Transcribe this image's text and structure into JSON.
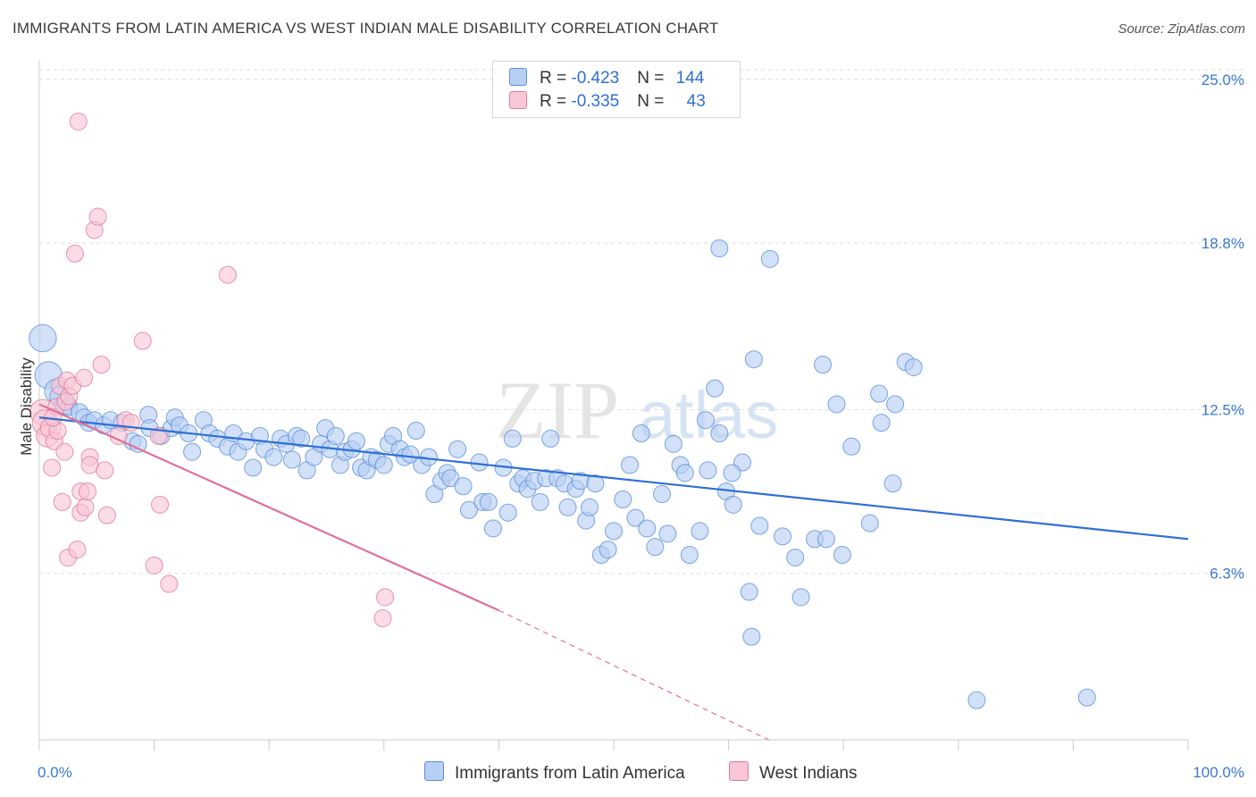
{
  "title": "IMMIGRANTS FROM LATIN AMERICA VS WEST INDIAN MALE DISABILITY CORRELATION CHART",
  "source": "Source: ZipAtlas.com",
  "watermark": {
    "zip": "ZIP",
    "atlas": "atlas"
  },
  "stats": [
    {
      "r_label": "R = ",
      "r_value": "-0.423",
      "n_label": "N = ",
      "n_value": "144",
      "color": "#5b8fd9",
      "fill": "#b7cff3"
    },
    {
      "r_label": "R = ",
      "r_value": "-0.335",
      "n_label": "N = ",
      "n_value": "43",
      "color": "#e07a9e",
      "fill": "#f8c6d5"
    }
  ],
  "legend": [
    {
      "label": "Immigrants from Latin America",
      "fill": "#b7cff3",
      "stroke": "#5b8fd9"
    },
    {
      "label": "West Indians",
      "fill": "#f8c6d5",
      "stroke": "#e07a9e"
    }
  ],
  "chart_data": {
    "type": "scatter",
    "title": "IMMIGRANTS FROM LATIN AMERICA VS WEST INDIAN MALE DISABILITY CORRELATION CHART",
    "xlabel": "",
    "ylabel": "Male Disability",
    "xlim": [
      0,
      100
    ],
    "ylim": [
      0,
      25.5
    ],
    "x_tick_labels": [
      "0.0%",
      "100.0%"
    ],
    "y_ticks": [
      6.3,
      12.5,
      18.8,
      25.0
    ],
    "y_tick_labels": [
      "6.3%",
      "12.5%",
      "18.8%",
      "25.0%"
    ],
    "grid": true,
    "series": [
      {
        "name": "Immigrants from Latin America",
        "color": "#5b8fd9",
        "fill": "#b7cff3",
        "trend": {
          "x": [
            0,
            100
          ],
          "y": [
            12.2,
            7.6
          ],
          "dashed_from": null
        },
        "points": [
          [
            0.3,
            15.2,
            1.6
          ],
          [
            0.8,
            13.8,
            1.6
          ],
          [
            1.5,
            13.2,
            1.4
          ],
          [
            1.8,
            13.0,
            1.2
          ],
          [
            2.3,
            12.7,
            1.2
          ],
          [
            2.6,
            12.6,
            1.0
          ],
          [
            3.5,
            12.4,
            1.0
          ],
          [
            3.9,
            12.2,
            1.0
          ],
          [
            4.3,
            12.0,
            1.0
          ],
          [
            4.8,
            12.1,
            1.0
          ],
          [
            5.6,
            11.9,
            1.0
          ],
          [
            6.2,
            12.1,
            1.0
          ],
          [
            7.2,
            12.0,
            1.0
          ],
          [
            8.1,
            11.3,
            1.0
          ],
          [
            8.6,
            11.2,
            1.0
          ],
          [
            9.5,
            12.3,
            1.0
          ],
          [
            9.6,
            11.8,
            1.0
          ],
          [
            10.6,
            11.5,
            1.0
          ],
          [
            11.5,
            11.8,
            1.0
          ],
          [
            11.8,
            12.2,
            1.0
          ],
          [
            12.2,
            11.9,
            1.0
          ],
          [
            13.0,
            11.6,
            1.0
          ],
          [
            13.3,
            10.9,
            1.0
          ],
          [
            14.3,
            12.1,
            1.0
          ],
          [
            14.8,
            11.6,
            1.0
          ],
          [
            15.5,
            11.4,
            1.0
          ],
          [
            16.4,
            11.1,
            1.0
          ],
          [
            16.9,
            11.6,
            1.0
          ],
          [
            17.3,
            10.9,
            1.0
          ],
          [
            18.0,
            11.3,
            1.0
          ],
          [
            18.6,
            10.3,
            1.0
          ],
          [
            19.2,
            11.5,
            1.0
          ],
          [
            19.6,
            11.0,
            1.0
          ],
          [
            20.4,
            10.7,
            1.0
          ],
          [
            21.0,
            11.4,
            1.0
          ],
          [
            21.5,
            11.2,
            1.0
          ],
          [
            22.0,
            10.6,
            1.0
          ],
          [
            22.4,
            11.5,
            1.0
          ],
          [
            22.8,
            11.4,
            1.0
          ],
          [
            23.3,
            10.2,
            1.0
          ],
          [
            23.9,
            10.7,
            1.0
          ],
          [
            24.5,
            11.2,
            1.0
          ],
          [
            24.9,
            11.8,
            1.0
          ],
          [
            25.3,
            11.0,
            1.0
          ],
          [
            25.8,
            11.5,
            1.0
          ],
          [
            26.2,
            10.4,
            1.0
          ],
          [
            26.6,
            10.9,
            1.0
          ],
          [
            27.2,
            11.0,
            1.0
          ],
          [
            27.6,
            11.3,
            1.0
          ],
          [
            28.0,
            10.3,
            1.0
          ],
          [
            28.5,
            10.2,
            1.0
          ],
          [
            28.9,
            10.7,
            1.0
          ],
          [
            29.4,
            10.6,
            1.0
          ],
          [
            30.0,
            10.4,
            1.0
          ],
          [
            30.4,
            11.2,
            1.0
          ],
          [
            30.8,
            11.5,
            1.0
          ],
          [
            31.4,
            11.0,
            1.0
          ],
          [
            31.8,
            10.7,
            1.0
          ],
          [
            32.3,
            10.8,
            1.0
          ],
          [
            32.8,
            11.7,
            1.0
          ],
          [
            33.3,
            10.4,
            1.0
          ],
          [
            33.9,
            10.7,
            1.0
          ],
          [
            34.4,
            9.3,
            1.0
          ],
          [
            35.0,
            9.8,
            1.0
          ],
          [
            35.5,
            10.1,
            1.0
          ],
          [
            35.8,
            9.9,
            1.0
          ],
          [
            36.4,
            11.0,
            1.0
          ],
          [
            36.9,
            9.6,
            1.0
          ],
          [
            37.4,
            8.7,
            1.0
          ],
          [
            38.3,
            10.5,
            1.0
          ],
          [
            38.6,
            9.0,
            1.0
          ],
          [
            39.1,
            9.0,
            1.0
          ],
          [
            39.5,
            8.0,
            1.0
          ],
          [
            40.4,
            10.3,
            1.0
          ],
          [
            40.8,
            8.6,
            1.0
          ],
          [
            41.2,
            11.4,
            1.0
          ],
          [
            41.7,
            9.7,
            1.0
          ],
          [
            42.1,
            9.9,
            1.0
          ],
          [
            42.5,
            9.5,
            1.0
          ],
          [
            43.1,
            9.8,
            1.0
          ],
          [
            43.6,
            9.0,
            1.0
          ],
          [
            44.1,
            9.9,
            1.0
          ],
          [
            44.5,
            11.4,
            1.0
          ],
          [
            45.1,
            9.9,
            1.0
          ],
          [
            45.7,
            9.7,
            1.0
          ],
          [
            46.0,
            8.8,
            1.0
          ],
          [
            46.7,
            9.5,
            1.0
          ],
          [
            47.1,
            9.8,
            1.0
          ],
          [
            47.6,
            8.3,
            1.0
          ],
          [
            47.9,
            8.8,
            1.0
          ],
          [
            48.4,
            9.7,
            1.0
          ],
          [
            48.9,
            7.0,
            1.0
          ],
          [
            49.5,
            7.2,
            1.0
          ],
          [
            50.0,
            7.9,
            1.0
          ],
          [
            50.8,
            9.1,
            1.0
          ],
          [
            51.4,
            10.4,
            1.0
          ],
          [
            51.9,
            8.4,
            1.0
          ],
          [
            52.4,
            11.6,
            1.0
          ],
          [
            52.9,
            8.0,
            1.0
          ],
          [
            53.6,
            7.3,
            1.0
          ],
          [
            54.2,
            9.3,
            1.0
          ],
          [
            54.7,
            7.8,
            1.0
          ],
          [
            55.2,
            11.2,
            1.0
          ],
          [
            55.8,
            10.4,
            1.0
          ],
          [
            56.2,
            10.1,
            1.0
          ],
          [
            56.6,
            7.0,
            1.0
          ],
          [
            57.5,
            7.9,
            1.0
          ],
          [
            58.0,
            12.1,
            1.0
          ],
          [
            58.2,
            10.2,
            1.0
          ],
          [
            59.2,
            11.6,
            1.0
          ],
          [
            59.2,
            18.6,
            1.0
          ],
          [
            59.8,
            9.4,
            1.0
          ],
          [
            60.4,
            8.9,
            1.0
          ],
          [
            61.2,
            10.5,
            1.0
          ],
          [
            61.8,
            5.6,
            1.0
          ],
          [
            62.2,
            14.4,
            1.0
          ],
          [
            62.7,
            8.1,
            1.0
          ],
          [
            63.6,
            18.2,
            1.0
          ],
          [
            64.7,
            7.7,
            1.0
          ],
          [
            65.8,
            6.9,
            1.0
          ],
          [
            66.3,
            5.4,
            1.0
          ],
          [
            67.5,
            7.6,
            1.0
          ],
          [
            68.2,
            14.2,
            1.0
          ],
          [
            68.5,
            7.6,
            1.0
          ],
          [
            69.4,
            12.7,
            1.0
          ],
          [
            69.9,
            7.0,
            1.0
          ],
          [
            70.7,
            11.1,
            1.0
          ],
          [
            72.3,
            8.2,
            1.0
          ],
          [
            73.1,
            13.1,
            1.0
          ],
          [
            73.3,
            12.0,
            1.0
          ],
          [
            74.3,
            9.7,
            1.0
          ],
          [
            74.5,
            12.7,
            1.0
          ],
          [
            75.4,
            14.3,
            1.0
          ],
          [
            76.1,
            14.1,
            1.0
          ],
          [
            62.0,
            3.9,
            1.0
          ],
          [
            60.3,
            10.1,
            1.0
          ],
          [
            81.6,
            1.5,
            1.0
          ],
          [
            91.2,
            1.6,
            1.0
          ],
          [
            58.8,
            13.3,
            1.0
          ]
        ]
      },
      {
        "name": "West Indians",
        "color": "#e07a9e",
        "fill": "#f8c6d5",
        "trend": {
          "x": [
            0,
            40
          ],
          "y": [
            12.7,
            4.9
          ],
          "dashed_to": [
            63.5,
            0
          ]
        },
        "points": [
          [
            0.3,
            12.4,
            1.5
          ],
          [
            0.5,
            12.0,
            1.5
          ],
          [
            0.7,
            11.5,
            1.3
          ],
          [
            1.0,
            11.8,
            1.2
          ],
          [
            1.1,
            10.3,
            1.0
          ],
          [
            1.3,
            11.3,
            1.0
          ],
          [
            1.5,
            12.6,
            1.0
          ],
          [
            1.6,
            11.7,
            1.0
          ],
          [
            1.8,
            13.4,
            1.0
          ],
          [
            2.0,
            9.0,
            1.0
          ],
          [
            2.2,
            10.9,
            1.0
          ],
          [
            2.3,
            12.8,
            1.0
          ],
          [
            2.4,
            13.6,
            1.0
          ],
          [
            2.5,
            6.9,
            1.0
          ],
          [
            2.6,
            13.0,
            1.0
          ],
          [
            2.9,
            13.4,
            1.0
          ],
          [
            3.1,
            18.4,
            1.0
          ],
          [
            3.3,
            7.2,
            1.0
          ],
          [
            3.4,
            23.4,
            1.0
          ],
          [
            3.6,
            8.6,
            1.0
          ],
          [
            3.6,
            9.4,
            1.0
          ],
          [
            3.9,
            13.7,
            1.0
          ],
          [
            4.0,
            8.8,
            1.0
          ],
          [
            4.2,
            9.4,
            1.0
          ],
          [
            4.4,
            10.7,
            1.0
          ],
          [
            4.4,
            10.4,
            1.0
          ],
          [
            4.8,
            19.3,
            1.0
          ],
          [
            5.1,
            19.8,
            1.0
          ],
          [
            5.4,
            14.2,
            1.0
          ],
          [
            5.7,
            10.2,
            1.0
          ],
          [
            5.9,
            8.5,
            1.0
          ],
          [
            6.9,
            11.5,
            1.0
          ],
          [
            7.5,
            12.1,
            1.0
          ],
          [
            8.0,
            12.0,
            1.0
          ],
          [
            9.0,
            15.1,
            1.0
          ],
          [
            10.0,
            6.6,
            1.0
          ],
          [
            10.4,
            11.5,
            1.0
          ],
          [
            10.5,
            8.9,
            1.0
          ],
          [
            11.3,
            5.9,
            1.0
          ],
          [
            16.4,
            17.6,
            1.0
          ],
          [
            29.9,
            4.6,
            1.0
          ],
          [
            30.1,
            5.4,
            1.0
          ],
          [
            1.2,
            12.2,
            1.0
          ]
        ]
      }
    ]
  }
}
